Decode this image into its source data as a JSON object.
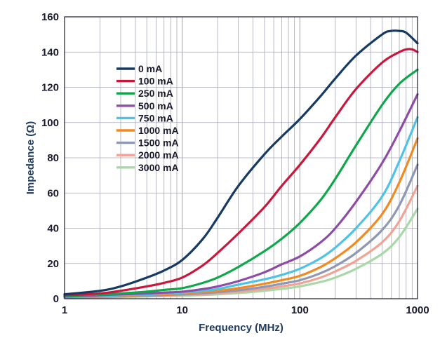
{
  "chart_data": {
    "type": "line",
    "title": "",
    "xlabel": "Frequency (MHz)",
    "ylabel": "Impedance (Ω)",
    "xscale": "log",
    "xlim": [
      1,
      1000
    ],
    "ylim": [
      0,
      160
    ],
    "xticks": [
      1,
      10,
      100,
      1000
    ],
    "xtick_labels": [
      "1",
      "10",
      "100",
      "1000"
    ],
    "yticks": [
      0,
      20,
      40,
      60,
      80,
      100,
      120,
      140,
      160
    ],
    "ytick_labels": [
      "0",
      "20",
      "40",
      "60",
      "80",
      "100",
      "120",
      "140",
      "160"
    ],
    "grid": true,
    "legend_position": "upper-left",
    "series": [
      {
        "name": "0 mA",
        "color": "#173a63",
        "x": [
          1,
          2,
          3,
          5,
          7,
          10,
          15,
          20,
          30,
          50,
          70,
          100,
          150,
          200,
          300,
          500,
          600,
          700,
          800,
          1000
        ],
        "y": [
          2.5,
          4.5,
          7,
          12,
          16,
          22,
          34,
          46,
          64,
          82,
          92,
          102,
          115,
          125,
          138,
          150,
          152,
          152,
          151,
          145
        ]
      },
      {
        "name": "100 mA",
        "color": "#c8193c",
        "x": [
          1,
          2,
          3,
          5,
          7,
          10,
          15,
          20,
          30,
          50,
          70,
          100,
          150,
          200,
          300,
          500,
          700,
          800,
          900,
          1000
        ],
        "y": [
          2,
          3,
          4.5,
          7,
          9,
          12,
          19,
          26,
          37,
          52,
          64,
          76,
          91,
          103,
          119,
          134,
          140,
          141.5,
          141.5,
          140
        ]
      },
      {
        "name": "250 mA",
        "color": "#0ea84a",
        "x": [
          1,
          2,
          3,
          5,
          7,
          10,
          15,
          20,
          30,
          50,
          70,
          100,
          150,
          200,
          300,
          500,
          700,
          1000
        ],
        "y": [
          1.5,
          2.5,
          3,
          4,
          5,
          6,
          9,
          12,
          18,
          27,
          34,
          43,
          56,
          68,
          87,
          110,
          122,
          130
        ]
      },
      {
        "name": "500 mA",
        "color": "#8e4ca6",
        "x": [
          1,
          2,
          3,
          5,
          7,
          10,
          15,
          20,
          30,
          50,
          70,
          100,
          150,
          200,
          300,
          500,
          700,
          1000
        ],
        "y": [
          1.2,
          2,
          2.5,
          3,
          3.5,
          4,
          5.5,
          7,
          10,
          15,
          19.5,
          24,
          32,
          40,
          55,
          77,
          95,
          116
        ]
      },
      {
        "name": "750 mA",
        "color": "#4fc3e4",
        "x": [
          1,
          2,
          3,
          5,
          7,
          10,
          15,
          20,
          30,
          50,
          70,
          100,
          150,
          200,
          300,
          500,
          700,
          1000
        ],
        "y": [
          1,
          1.5,
          2,
          2.5,
          3,
          3.5,
          4.5,
          5.5,
          8,
          11,
          13.5,
          17,
          23,
          29,
          40,
          58,
          78,
          103
        ]
      },
      {
        "name": "1000 mA",
        "color": "#f18a21",
        "x": [
          1,
          2,
          3,
          5,
          7,
          10,
          15,
          20,
          30,
          50,
          70,
          100,
          150,
          200,
          300,
          500,
          700,
          1000
        ],
        "y": [
          1,
          1.3,
          1.7,
          2.2,
          2.6,
          3,
          3.8,
          4.5,
          6,
          8.5,
          10.5,
          13,
          18,
          23,
          32,
          48,
          66,
          91
        ]
      },
      {
        "name": "1500 mA",
        "color": "#8e97b3",
        "x": [
          1,
          2,
          3,
          5,
          7,
          10,
          15,
          20,
          30,
          50,
          70,
          100,
          150,
          200,
          300,
          500,
          700,
          1000
        ],
        "y": [
          0.8,
          1.1,
          1.4,
          1.8,
          2.1,
          2.5,
          3.1,
          3.7,
          4.8,
          6.8,
          8.5,
          10.5,
          14.5,
          18.5,
          26,
          39,
          53,
          76
        ]
      },
      {
        "name": "2000 mA",
        "color": "#f2a394",
        "x": [
          1,
          2,
          3,
          5,
          7,
          10,
          15,
          20,
          30,
          50,
          70,
          100,
          150,
          200,
          300,
          500,
          700,
          1000
        ],
        "y": [
          0.7,
          1,
          1.2,
          1.6,
          1.8,
          2.1,
          2.6,
          3.1,
          4,
          5.6,
          7,
          8.7,
          12,
          15.5,
          21.5,
          32,
          44,
          64
        ]
      },
      {
        "name": "3000 mA",
        "color": "#a8d8a6",
        "x": [
          1,
          2,
          3,
          5,
          7,
          10,
          15,
          20,
          30,
          50,
          70,
          100,
          150,
          200,
          300,
          500,
          700,
          1000
        ],
        "y": [
          0.6,
          0.8,
          1,
          1.3,
          1.5,
          1.7,
          2.1,
          2.5,
          3.2,
          4.5,
          5.6,
          7,
          9.5,
          12,
          17,
          25.5,
          35,
          51
        ]
      }
    ]
  }
}
